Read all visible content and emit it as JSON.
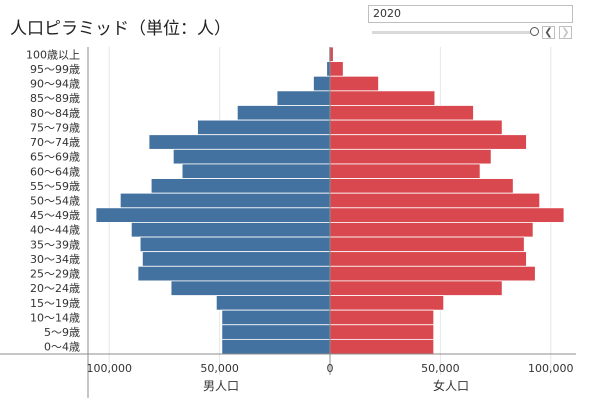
{
  "title": "人口ピラミッド（単位：人）",
  "year_filter": {
    "value": "2020",
    "prev_icon": "chevron-left-icon",
    "next_icon": "chevron-right-icon"
  },
  "colors": {
    "male": "#4472a0",
    "female": "#d9484f",
    "axis": "#8c8c8c",
    "grid": "#e6e6e6",
    "row_divider": "#ffffff"
  },
  "chart_data": {
    "type": "bar",
    "orientation": "horizontal",
    "categories": [
      "100歳以上",
      "95〜99歳",
      "90〜94歳",
      "85〜89歳",
      "80〜84歳",
      "75〜79歳",
      "70〜74歳",
      "65〜69歳",
      "60〜64歳",
      "55〜59歳",
      "50〜54歳",
      "45〜49歳",
      "40〜44歳",
      "35〜39歳",
      "30〜34歳",
      "25〜29歳",
      "20〜24歳",
      "15〜19歳",
      "10〜14歳",
      "5〜9歳",
      "0〜4歳"
    ],
    "series": [
      {
        "name": "男人口",
        "values": [
          500,
          1500,
          7500,
          24000,
          42000,
          60000,
          82000,
          71000,
          67000,
          81000,
          95000,
          106000,
          90000,
          86000,
          85000,
          87000,
          72000,
          51500,
          49000,
          49000,
          49000
        ]
      },
      {
        "name": "女人口",
        "values": [
          1500,
          6000,
          22000,
          47500,
          65000,
          78000,
          89000,
          73000,
          68000,
          83000,
          95000,
          106000,
          92000,
          88000,
          89000,
          93000,
          78000,
          51500,
          47000,
          47000,
          47000
        ]
      }
    ],
    "xticks": [
      "100,000",
      "50,000",
      "0",
      "50,000",
      "100,000"
    ],
    "xtick_values": [
      -100000,
      -50000,
      0,
      50000,
      100000
    ],
    "xlim": [
      -110000,
      110000
    ],
    "xlabels": [
      "男人口",
      "女人口"
    ],
    "grid": true
  }
}
